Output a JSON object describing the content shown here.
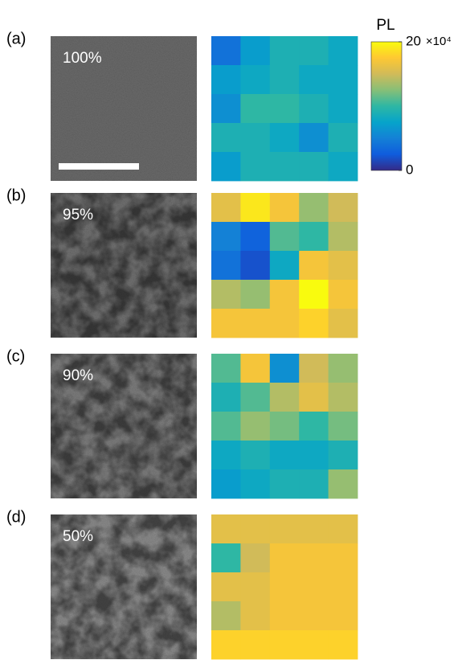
{
  "colorbar": {
    "title": "PL",
    "clim": [
      0,
      20
    ],
    "ticks": [
      0,
      20
    ],
    "multiplier": "×10⁴",
    "colormap": [
      "#352a87",
      "#0f5cdd",
      "#1481d6",
      "#06a4ca",
      "#2eb7a4",
      "#87bf77",
      "#d1bb59",
      "#fec832",
      "#f9fb0e"
    ]
  },
  "panels": [
    {
      "label": "(a)",
      "percent": "100%",
      "values": [
        [
          4,
          7,
          9,
          9,
          8
        ],
        [
          7,
          8,
          9,
          8,
          8
        ],
        [
          6,
          10,
          10,
          9,
          8
        ],
        [
          9,
          9,
          8,
          6,
          9
        ],
        [
          7,
          9,
          9,
          9,
          8
        ]
      ]
    },
    {
      "label": "(b)",
      "percent": "95%",
      "values": [
        [
          16,
          19,
          17,
          13,
          15
        ],
        [
          5,
          3,
          11,
          10,
          14
        ],
        [
          4,
          2,
          8,
          17,
          16
        ],
        [
          14,
          13,
          17,
          20,
          17
        ],
        [
          17,
          17,
          17,
          18,
          16
        ]
      ]
    },
    {
      "label": "(c)",
      "percent": "90%",
      "values": [
        [
          11,
          17,
          6,
          15,
          13
        ],
        [
          9,
          11,
          14,
          16,
          14
        ],
        [
          11,
          13,
          12,
          10,
          12
        ],
        [
          8,
          9,
          8,
          8,
          9
        ],
        [
          7,
          8,
          9,
          9,
          13
        ]
      ]
    },
    {
      "label": "(d)",
      "percent": "50%",
      "values": [
        [
          16,
          16,
          16,
          16,
          16
        ],
        [
          10,
          15,
          17,
          17,
          17
        ],
        [
          16,
          16,
          17,
          17,
          17
        ],
        [
          14,
          16,
          17,
          17,
          17
        ],
        [
          18,
          18,
          18,
          18,
          18
        ]
      ]
    }
  ]
}
